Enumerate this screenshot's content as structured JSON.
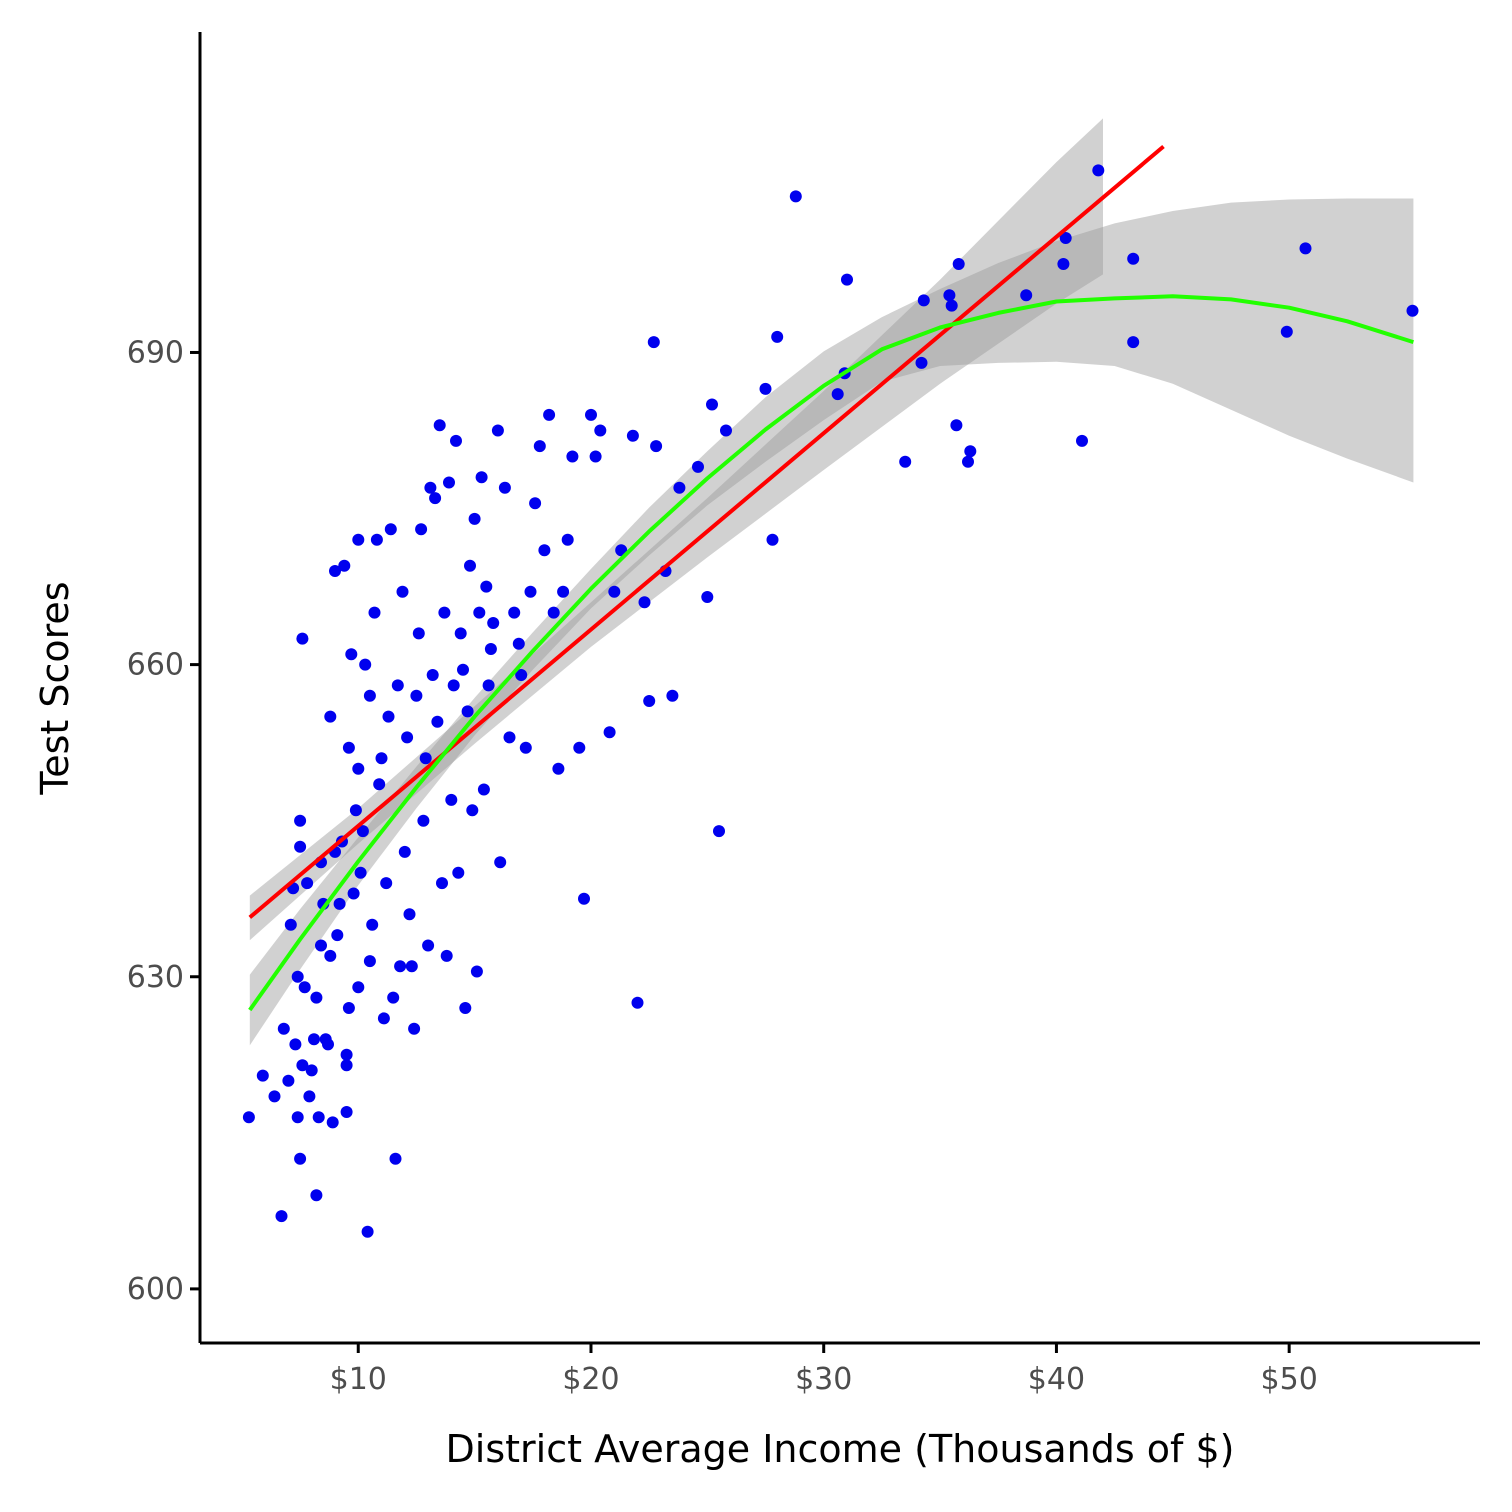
{
  "chart_data": {
    "type": "scatter",
    "title": "",
    "xlabel": "District Average Income (Thousands of $)",
    "ylabel": "Test Scores",
    "xlim": [
      3.2,
      58.2
    ],
    "ylim": [
      594.8,
      720.8
    ],
    "x_ticks": [
      10,
      20,
      30,
      40,
      50
    ],
    "x_tick_labels": [
      "$10",
      "$20",
      "$30",
      "$40",
      "$50"
    ],
    "y_ticks": [
      600,
      630,
      660,
      690
    ],
    "y_tick_labels": [
      "600",
      "630",
      "660",
      "690"
    ],
    "grid": false,
    "legend": "none",
    "colors": {
      "points": "#0000ee",
      "linear_fit": "#ff0000",
      "quadratic_fit": "#22ff00",
      "confidence_band": "#999999"
    },
    "series": [
      {
        "kind": "points",
        "points": [
          [
            5.3,
            616.5
          ],
          [
            5.9,
            620.5
          ],
          [
            6.4,
            618.5
          ],
          [
            6.7,
            607.0
          ],
          [
            6.8,
            625.0
          ],
          [
            7.0,
            620.0
          ],
          [
            7.1,
            635.0
          ],
          [
            7.2,
            638.5
          ],
          [
            7.3,
            623.5
          ],
          [
            7.4,
            630.0
          ],
          [
            7.4,
            616.5
          ],
          [
            7.5,
            612.5
          ],
          [
            7.5,
            642.5
          ],
          [
            7.5,
            645.0
          ],
          [
            7.6,
            621.5
          ],
          [
            7.6,
            662.5
          ],
          [
            7.7,
            629.0
          ],
          [
            7.8,
            639.0
          ],
          [
            7.9,
            618.5
          ],
          [
            8.0,
            621.0
          ],
          [
            8.1,
            624.0
          ],
          [
            8.2,
            628.0
          ],
          [
            8.2,
            609.0
          ],
          [
            8.3,
            616.5
          ],
          [
            8.4,
            641.0
          ],
          [
            8.4,
            633.0
          ],
          [
            8.5,
            637.0
          ],
          [
            8.6,
            624.0
          ],
          [
            8.7,
            623.5
          ],
          [
            8.8,
            655.0
          ],
          [
            8.8,
            632.0
          ],
          [
            8.9,
            616.0
          ],
          [
            9.0,
            642.0
          ],
          [
            9.0,
            669.0
          ],
          [
            9.1,
            634.0
          ],
          [
            9.2,
            637.0
          ],
          [
            9.3,
            643.0
          ],
          [
            9.4,
            669.5
          ],
          [
            9.5,
            622.5
          ],
          [
            9.5,
            621.5
          ],
          [
            9.5,
            617.0
          ],
          [
            9.6,
            627.0
          ],
          [
            9.6,
            652.0
          ],
          [
            9.7,
            661.0
          ],
          [
            9.8,
            638.0
          ],
          [
            9.9,
            646.0
          ],
          [
            10.0,
            629.0
          ],
          [
            10.0,
            650.0
          ],
          [
            10.0,
            672.0
          ],
          [
            10.1,
            640.0
          ],
          [
            10.2,
            644.0
          ],
          [
            10.3,
            660.0
          ],
          [
            10.4,
            605.5
          ],
          [
            10.5,
            631.5
          ],
          [
            10.5,
            657.0
          ],
          [
            10.6,
            635.0
          ],
          [
            10.7,
            665.0
          ],
          [
            10.8,
            672.0
          ],
          [
            10.9,
            648.5
          ],
          [
            11.0,
            651.0
          ],
          [
            11.1,
            626.0
          ],
          [
            11.2,
            639.0
          ],
          [
            11.3,
            655.0
          ],
          [
            11.4,
            673.0
          ],
          [
            11.5,
            628.0
          ],
          [
            11.6,
            612.5
          ],
          [
            11.7,
            658.0
          ],
          [
            11.8,
            631.0
          ],
          [
            11.9,
            667.0
          ],
          [
            12.0,
            642.0
          ],
          [
            12.1,
            653.0
          ],
          [
            12.2,
            636.0
          ],
          [
            12.3,
            631.0
          ],
          [
            12.4,
            625.0
          ],
          [
            12.5,
            657.0
          ],
          [
            12.6,
            663.0
          ],
          [
            12.7,
            673.0
          ],
          [
            12.8,
            645.0
          ],
          [
            12.9,
            651.0
          ],
          [
            13.0,
            633.0
          ],
          [
            13.1,
            677.0
          ],
          [
            13.2,
            659.0
          ],
          [
            13.3,
            676.0
          ],
          [
            13.4,
            654.5
          ],
          [
            13.5,
            683.0
          ],
          [
            13.6,
            639.0
          ],
          [
            13.7,
            665.0
          ],
          [
            13.8,
            632.0
          ],
          [
            13.9,
            677.5
          ],
          [
            14.0,
            647.0
          ],
          [
            14.1,
            658.0
          ],
          [
            14.2,
            681.5
          ],
          [
            14.3,
            640.0
          ],
          [
            14.4,
            663.0
          ],
          [
            14.5,
            659.5
          ],
          [
            14.6,
            627.0
          ],
          [
            14.7,
            655.5
          ],
          [
            14.8,
            669.5
          ],
          [
            14.9,
            646.0
          ],
          [
            15.0,
            674.0
          ],
          [
            15.1,
            630.5
          ],
          [
            15.2,
            665.0
          ],
          [
            15.3,
            678.0
          ],
          [
            15.4,
            648.0
          ],
          [
            15.5,
            667.5
          ],
          [
            15.6,
            658.0
          ],
          [
            15.7,
            661.5
          ],
          [
            15.8,
            664.0
          ],
          [
            16.0,
            682.5
          ],
          [
            16.1,
            641.0
          ],
          [
            16.3,
            677.0
          ],
          [
            16.5,
            653.0
          ],
          [
            16.7,
            665.0
          ],
          [
            16.9,
            662.0
          ],
          [
            17.0,
            659.0
          ],
          [
            17.2,
            652.0
          ],
          [
            17.4,
            667.0
          ],
          [
            17.6,
            675.5
          ],
          [
            17.8,
            681.0
          ],
          [
            18.0,
            671.0
          ],
          [
            18.2,
            684.0
          ],
          [
            18.4,
            665.0
          ],
          [
            18.6,
            650.0
          ],
          [
            18.8,
            667.0
          ],
          [
            19.0,
            672.0
          ],
          [
            19.2,
            680.0
          ],
          [
            19.5,
            652.0
          ],
          [
            19.7,
            637.5
          ],
          [
            20.0,
            684.0
          ],
          [
            20.2,
            680.0
          ],
          [
            20.4,
            682.5
          ],
          [
            20.8,
            653.5
          ],
          [
            21.0,
            667.0
          ],
          [
            21.3,
            671.0
          ],
          [
            21.8,
            682.0
          ],
          [
            22.0,
            627.5
          ],
          [
            22.3,
            666.0
          ],
          [
            22.5,
            656.5
          ],
          [
            22.7,
            691.0
          ],
          [
            22.8,
            681.0
          ],
          [
            23.2,
            669.0
          ],
          [
            23.5,
            657.0
          ],
          [
            23.8,
            677.0
          ],
          [
            24.6,
            679.0
          ],
          [
            25.0,
            666.5
          ],
          [
            25.2,
            685.0
          ],
          [
            25.5,
            644.0
          ],
          [
            25.8,
            682.5
          ],
          [
            27.5,
            686.5
          ],
          [
            27.8,
            672.0
          ],
          [
            28.0,
            691.5
          ],
          [
            28.8,
            705.0
          ],
          [
            30.6,
            686.0
          ],
          [
            30.9,
            688.0
          ],
          [
            31.0,
            697.0
          ],
          [
            33.5,
            679.5
          ],
          [
            34.2,
            689.0
          ],
          [
            34.3,
            695.0
          ],
          [
            35.4,
            695.5
          ],
          [
            35.5,
            694.5
          ],
          [
            35.7,
            683.0
          ],
          [
            35.8,
            698.5
          ],
          [
            36.2,
            679.5
          ],
          [
            36.3,
            680.5
          ],
          [
            38.7,
            695.5
          ],
          [
            40.3,
            698.5
          ],
          [
            40.4,
            701.0
          ],
          [
            41.1,
            681.5
          ],
          [
            41.8,
            707.5
          ],
          [
            43.3,
            691.0
          ],
          [
            43.3,
            699.0
          ],
          [
            49.9,
            692.0
          ],
          [
            50.7,
            700.0
          ],
          [
            55.3,
            694.0
          ]
        ]
      },
      {
        "kind": "linear_fit",
        "name": "",
        "x": [
          5.34,
          44.6
        ],
        "y": [
          635.7,
          709.8
        ]
      },
      {
        "kind": "linear_band",
        "x": [
          5.34,
          10.0,
          15.0,
          20.0,
          25.0,
          30.0,
          35.0,
          40.0,
          42.0
        ],
        "lower": [
          633.5,
          642.8,
          652.4,
          661.7,
          670.3,
          678.7,
          687.0,
          694.7,
          697.5
        ],
        "upper": [
          637.8,
          646.2,
          656.0,
          666.0,
          676.0,
          686.3,
          697.0,
          708.3,
          712.5
        ]
      },
      {
        "kind": "quadratic_fit",
        "name": "",
        "x": [
          5.34,
          7.5,
          10.0,
          12.5,
          15.0,
          17.5,
          20.0,
          22.5,
          25.0,
          27.5,
          30.0,
          32.5,
          35.0,
          37.5,
          40.0,
          42.5,
          45.0,
          47.5,
          50.0,
          52.5,
          55.34
        ],
        "y": [
          626.8,
          633.6,
          641.1,
          648.2,
          655.0,
          661.3,
          667.3,
          672.8,
          677.9,
          682.6,
          686.8,
          690.3,
          692.4,
          693.8,
          694.9,
          695.2,
          695.4,
          695.1,
          694.3,
          693.0,
          691.0
        ]
      },
      {
        "kind": "quadratic_band",
        "x": [
          5.34,
          7.5,
          10.0,
          12.5,
          15.0,
          17.5,
          20.0,
          22.5,
          25.0,
          27.5,
          30.0,
          32.5,
          35.0,
          37.5,
          40.0,
          42.5,
          45.0,
          47.5,
          50.0,
          52.5,
          55.34
        ],
        "lower": [
          623.4,
          630.7,
          638.8,
          646.2,
          653.2,
          659.5,
          665.4,
          670.5,
          675.3,
          679.5,
          683.5,
          687.2,
          688.7,
          689.0,
          689.1,
          688.7,
          687.0,
          684.5,
          682.0,
          679.8,
          677.5
        ],
        "upper": [
          630.2,
          636.5,
          643.4,
          650.2,
          656.8,
          663.1,
          669.2,
          675.1,
          680.5,
          685.7,
          690.1,
          693.4,
          696.1,
          698.6,
          700.7,
          702.4,
          703.6,
          704.4,
          704.7,
          704.8,
          704.8
        ]
      }
    ]
  }
}
